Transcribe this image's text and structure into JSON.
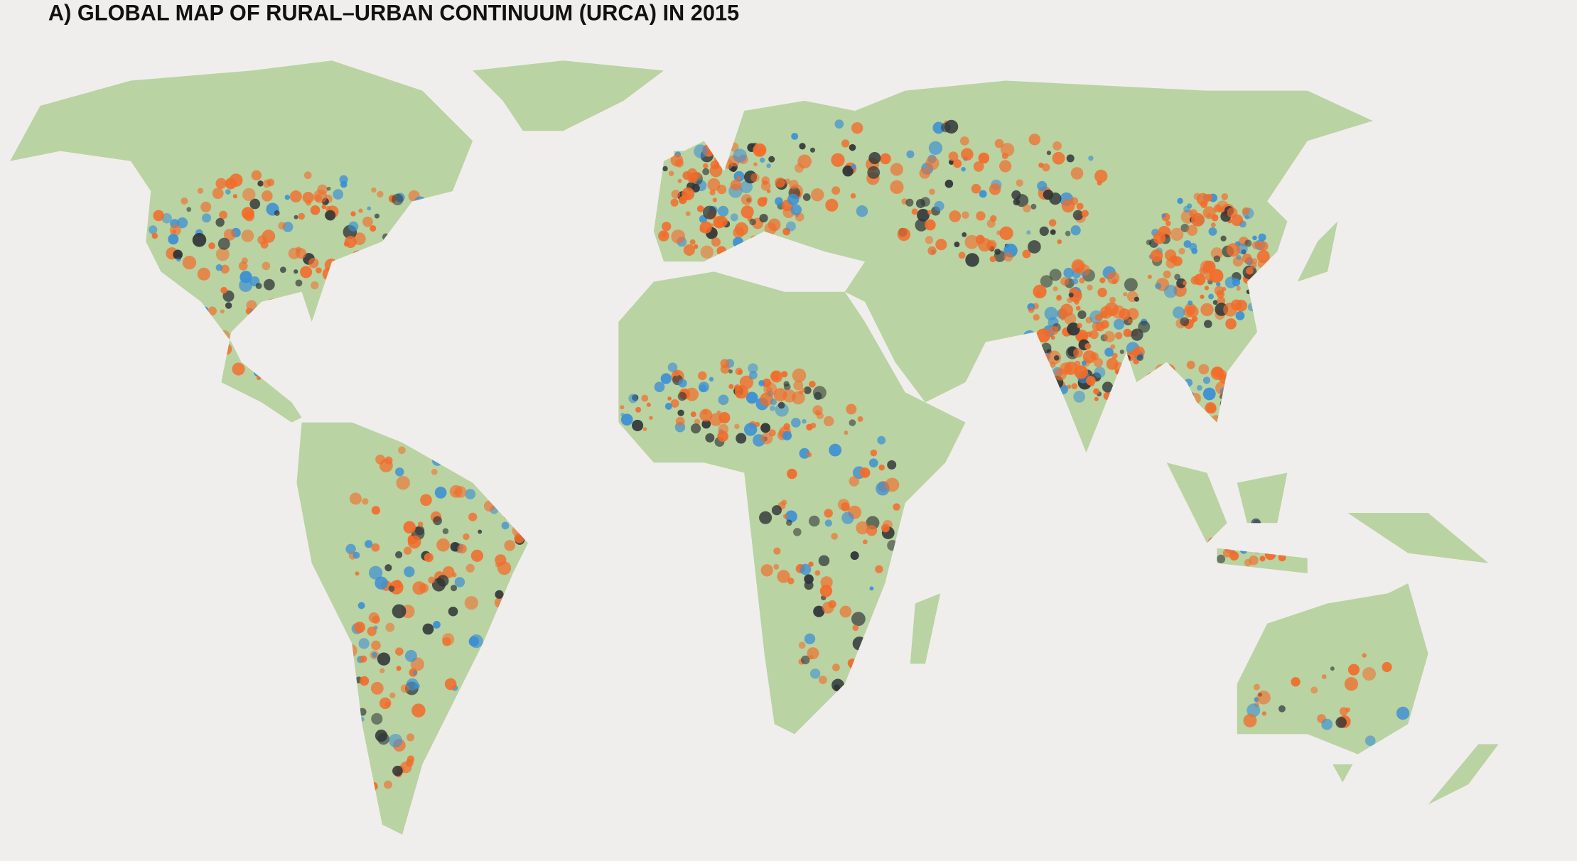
{
  "title": "A) GLOBAL MAP OF RURAL–URBAN CONTINUUM (URCA) IN 2015"
}
